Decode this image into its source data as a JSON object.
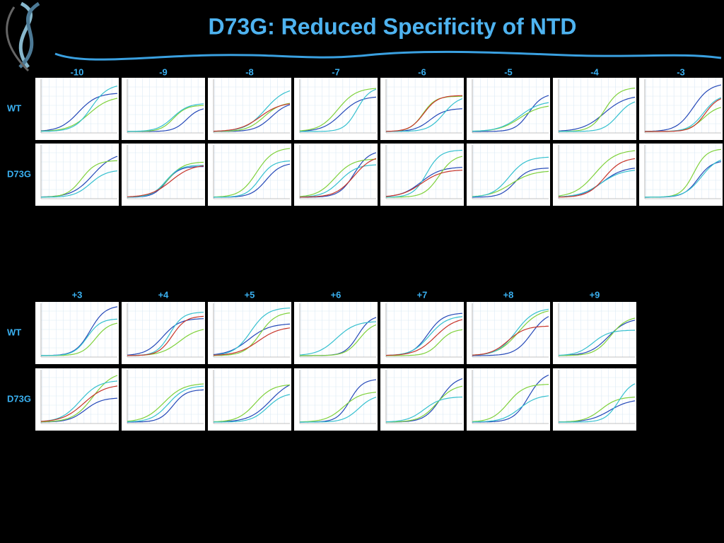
{
  "header": {
    "title": "D73G: Reduced Specificity of NTD"
  },
  "sections": [
    {
      "columns": [
        "-10",
        "-9",
        "-8",
        "-7",
        "-6",
        "-5",
        "-4",
        "-3"
      ],
      "rows": [
        "WT",
        "D73G"
      ]
    },
    {
      "columns": [
        "+3",
        "+4",
        "+5",
        "+6",
        "+7",
        "+8",
        "+9"
      ],
      "rows": [
        "WT",
        "D73G"
      ]
    }
  ]
}
